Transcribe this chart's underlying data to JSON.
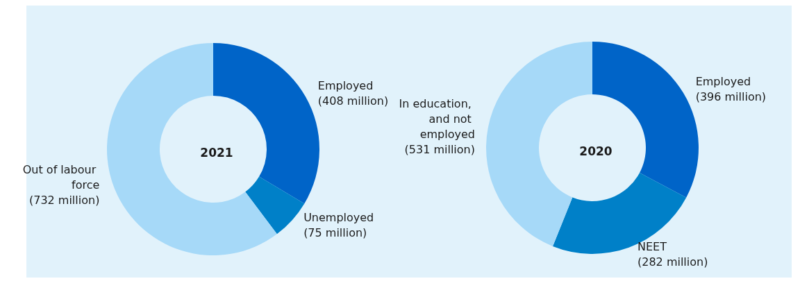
{
  "chart_data": [
    {
      "type": "donut",
      "title": "2021",
      "categories": [
        "Employed",
        "Unemployed",
        "Out of labour force"
      ],
      "values": [
        408,
        75,
        732
      ],
      "value_labels": [
        "(408 million)",
        "(75 million)",
        "(732 million)"
      ],
      "colors": [
        "#0064c8",
        "#0080c8",
        "#a6d9f8"
      ],
      "legend": false
    },
    {
      "type": "donut",
      "title": "2020",
      "categories": [
        "Employed",
        "NEET",
        "In education, and not employed"
      ],
      "values": [
        396,
        282,
        531
      ],
      "value_labels": [
        "(396 million)",
        "(282 million)",
        "(531 million)"
      ],
      "colors": [
        "#0064c8",
        "#0080c8",
        "#a6d9f8"
      ],
      "legend": false
    }
  ]
}
